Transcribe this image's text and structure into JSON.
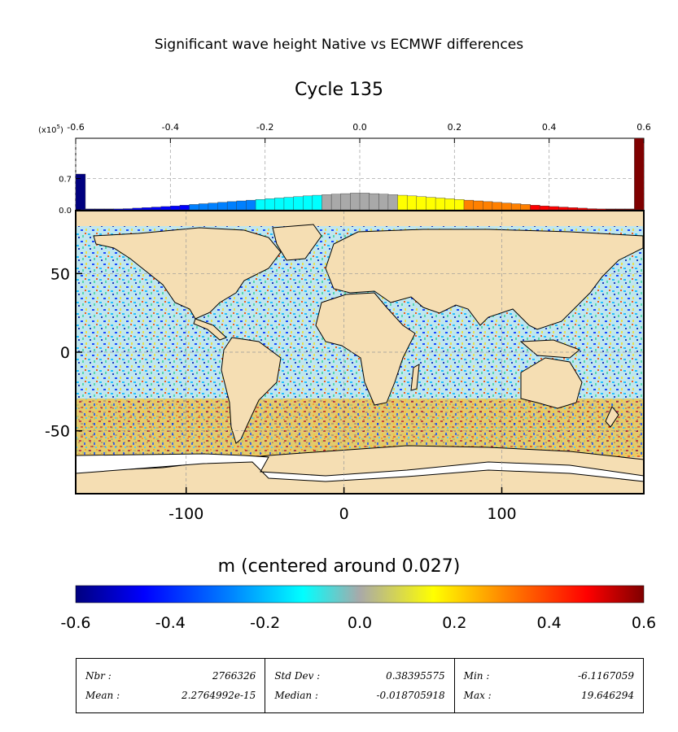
{
  "suptitle": "Significant wave height Native vs ECMWF differences",
  "subtitle": "Cycle 135",
  "colorbar_label": "m (centered around 0.027)",
  "histogram": {
    "x_ticks": [
      "-0.6",
      "-0.4",
      "-0.2",
      "0.0",
      "0.2",
      "0.4",
      "0.6"
    ],
    "y_ticks": [
      "0.0",
      "0.7"
    ],
    "y_multiplier_base": "(x10",
    "y_multiplier_exp": "5",
    "y_multiplier_close": ")"
  },
  "map": {
    "x_ticks": [
      "-100",
      "0",
      "100"
    ],
    "y_ticks": [
      "50",
      "0",
      "-50"
    ],
    "land_color": "#f5deb3",
    "ice_color": "#ffffff"
  },
  "colorbar": {
    "ticks": [
      "-0.6",
      "-0.4",
      "-0.2",
      "0.0",
      "0.2",
      "0.4",
      "0.6"
    ],
    "colors": [
      "#00007f",
      "#0000ff",
      "#0080ff",
      "#00ffff",
      "#a9a9a9",
      "#ffff00",
      "#ff8000",
      "#ff0000",
      "#7f0000"
    ]
  },
  "stats": [
    {
      "label1": "Nbr :",
      "value1": "2766326",
      "label2": "Mean :",
      "value2": "2.2764992e-15"
    },
    {
      "label1": "Std Dev :",
      "value1": "0.38395575",
      "label2": "Median :",
      "value2": "-0.018705918"
    },
    {
      "label1": "Min :",
      "value1": "-6.1167059",
      "label2": "Max :",
      "value2": "19.646294"
    }
  ],
  "chart_data": {
    "type": "bar",
    "title": "Cycle 135",
    "xlabel": "m (centered around 0.027)",
    "ylabel": "",
    "xlim": [
      -0.6,
      0.6
    ],
    "ylim": [
      0,
      1.6
    ],
    "y_scale_factor": 100000,
    "x": [
      -0.6,
      -0.5,
      -0.4,
      -0.3,
      -0.2,
      -0.1,
      0.0,
      0.1,
      0.2,
      0.3,
      0.4,
      0.5,
      0.6
    ],
    "values": [
      0.8,
      0.02,
      0.08,
      0.16,
      0.24,
      0.32,
      0.38,
      0.32,
      0.24,
      0.16,
      0.08,
      0.02,
      1.6
    ]
  }
}
